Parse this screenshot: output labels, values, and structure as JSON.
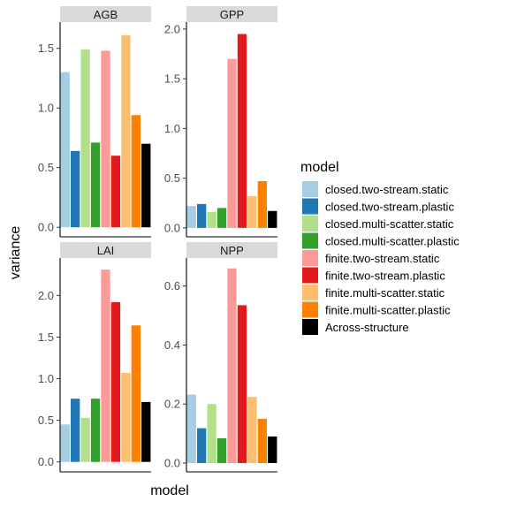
{
  "chart_data": {
    "type": "bar",
    "xlabel": "model",
    "ylabel": "variance",
    "legend": {
      "title": "model",
      "position": "right",
      "entries": [
        {
          "name": "closed.two-stream.static",
          "color": "#a6cee3"
        },
        {
          "name": "closed.two-stream.plastic",
          "color": "#1f78b4"
        },
        {
          "name": "closed.multi-scatter.static",
          "color": "#b2df8a"
        },
        {
          "name": "closed.multi-scatter.plastic",
          "color": "#33a02c"
        },
        {
          "name": "finite.two-stream.static",
          "color": "#fb9a99"
        },
        {
          "name": "finite.two-stream.plastic",
          "color": "#e31a1c"
        },
        {
          "name": "finite.multi-scatter.static",
          "color": "#fdbf6f"
        },
        {
          "name": "finite.multi-scatter.plastic",
          "color": "#ff7f00"
        },
        {
          "name": "Across-structure",
          "color": "#000000"
        }
      ]
    },
    "grid": false,
    "panels": [
      {
        "title": "AGB",
        "ylim": [
          -0.08,
          1.72
        ],
        "yticks": [
          0.0,
          0.5,
          1.0,
          1.5
        ],
        "ytick_labels": [
          "0.0",
          "0.5",
          "1.0",
          "1.5"
        ],
        "values": [
          1.3,
          0.64,
          1.49,
          0.71,
          1.48,
          0.6,
          1.61,
          0.94,
          0.7
        ]
      },
      {
        "title": "GPP",
        "ylim": [
          -0.09,
          2.07
        ],
        "yticks": [
          0.0,
          0.5,
          1.0,
          1.5,
          2.0
        ],
        "ytick_labels": [
          "0.0",
          "0.5",
          "1.0",
          "1.5",
          "2.0"
        ],
        "values": [
          0.22,
          0.24,
          0.16,
          0.2,
          1.7,
          1.95,
          0.32,
          0.47,
          0.17
        ]
      },
      {
        "title": "LAI",
        "ylim": [
          -0.12,
          2.45
        ],
        "yticks": [
          0.0,
          0.5,
          1.0,
          1.5,
          2.0
        ],
        "ytick_labels": [
          "0.0",
          "0.5",
          "1.0",
          "1.5",
          "2.0"
        ],
        "values": [
          0.45,
          0.76,
          0.53,
          0.76,
          2.31,
          1.92,
          1.07,
          1.64,
          0.72
        ]
      },
      {
        "title": "NPP",
        "ylim": [
          -0.03,
          0.695
        ],
        "yticks": [
          0.0,
          0.2,
          0.4,
          0.6
        ],
        "ytick_labels": [
          "0.0",
          "0.2",
          "0.4",
          "0.6"
        ],
        "values": [
          0.232,
          0.118,
          0.2,
          0.084,
          0.66,
          0.535,
          0.224,
          0.15,
          0.09
        ]
      }
    ]
  }
}
